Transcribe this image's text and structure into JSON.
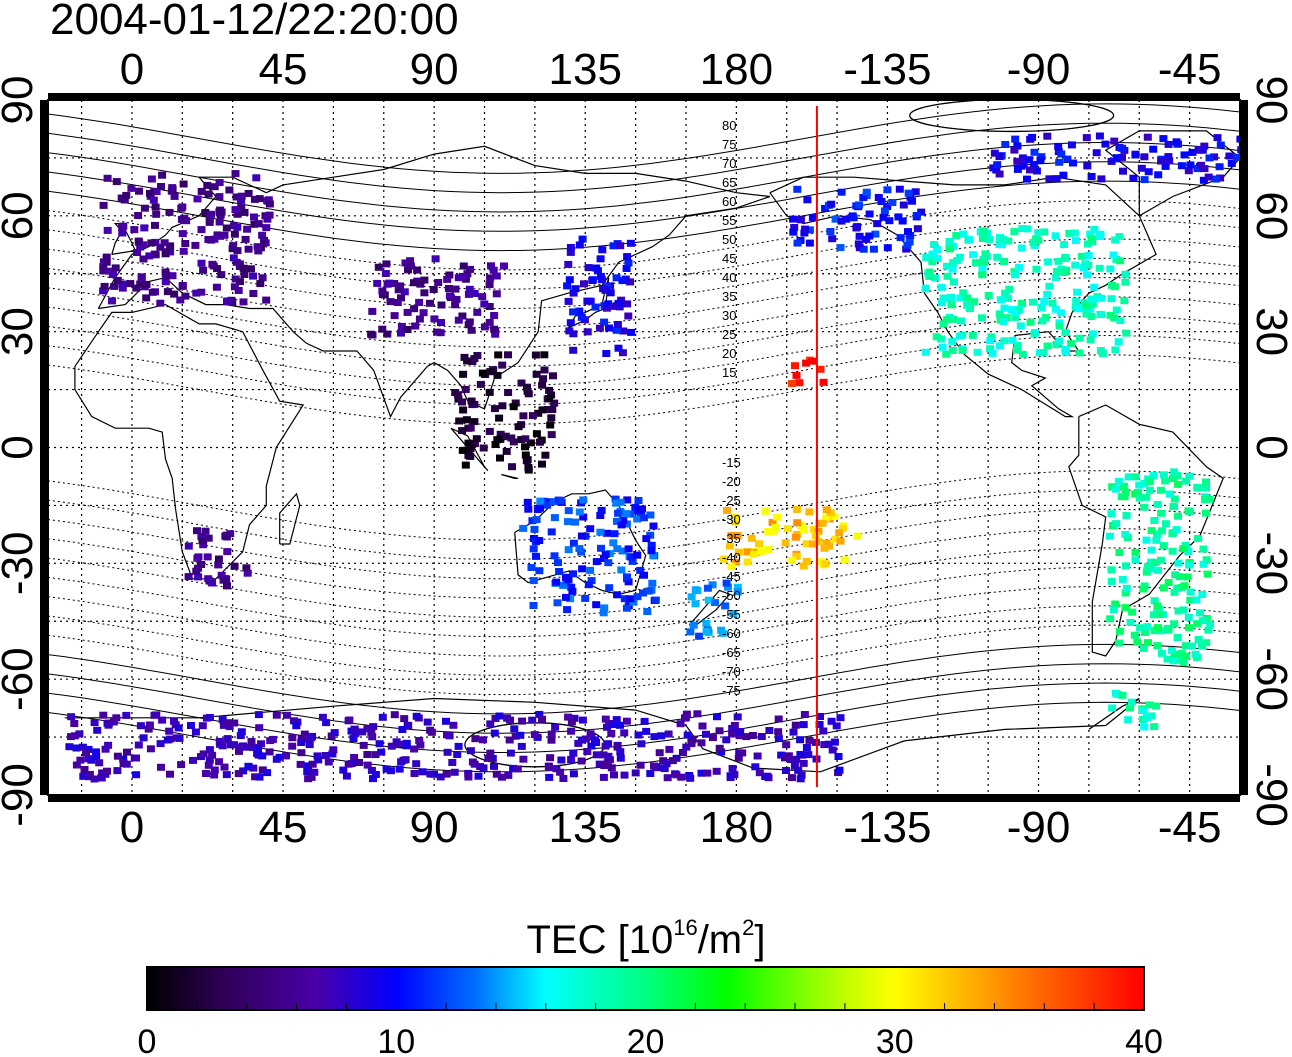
{
  "title": "2004-01-12/22:20:00",
  "map": {
    "lon_ticks": [
      {
        "lon": 0,
        "label": "0"
      },
      {
        "lon": 45,
        "label": "45"
      },
      {
        "lon": 90,
        "label": "90"
      },
      {
        "lon": 135,
        "label": "135"
      },
      {
        "lon": 180,
        "label": "180"
      },
      {
        "lon": 225,
        "label": "-135"
      },
      {
        "lon": 270,
        "label": "-90"
      },
      {
        "lon": 315,
        "label": "-45"
      }
    ],
    "lat_ticks": [
      {
        "lat": 90,
        "label": "90"
      },
      {
        "lat": 60,
        "label": "60"
      },
      {
        "lat": 30,
        "label": "30"
      },
      {
        "lat": 0,
        "label": "0"
      },
      {
        "lat": -30,
        "label": "-30"
      },
      {
        "lat": -60,
        "label": "-60"
      },
      {
        "lat": -90,
        "label": "-90"
      }
    ],
    "lon_range": [
      -25,
      330
    ],
    "lat_range": [
      -90,
      90
    ],
    "grid": "dotted 15-degree",
    "terminator_lon": 204,
    "magnetic_lat_labels_north": [
      "80",
      "75",
      "70",
      "65",
      "60",
      "55",
      "50",
      "45",
      "40",
      "35",
      "30",
      "25",
      "20",
      "15"
    ],
    "magnetic_lat_labels_south": [
      "-15",
      "-20",
      "-25",
      "-30",
      "-35",
      "-40",
      "-45",
      "-50",
      "-55",
      "-60",
      "-65",
      "-70",
      "-75"
    ]
  },
  "colorbar": {
    "label_main": "TEC  [10",
    "label_exp1": "16",
    "label_mid": "/m",
    "label_exp2": "2",
    "label_end": "]",
    "ticks": [
      "0",
      "10",
      "20",
      "30",
      "40"
    ],
    "range": [
      0,
      40
    ]
  },
  "colors": {
    "terminator": "#ff0000",
    "scale": [
      "#000000",
      "#30005a",
      "#4a00a8",
      "#0000ff",
      "#00a0ff",
      "#00ffff",
      "#00ff80",
      "#00ff00",
      "#c0ff00",
      "#ffff00",
      "#ff8000",
      "#ff0000"
    ]
  },
  "tec_regions": [
    {
      "region": "Europe",
      "lon": [
        -10,
        40
      ],
      "lat": [
        38,
        72
      ],
      "tec": 6
    },
    {
      "region": "Asia",
      "lon": [
        70,
        110
      ],
      "lat": [
        30,
        50
      ],
      "tec": 6
    },
    {
      "region": "Japan",
      "lon": [
        128,
        148
      ],
      "lat": [
        25,
        55
      ],
      "tec": 10
    },
    {
      "region": "North America",
      "lon": [
        235,
        295
      ],
      "lat": [
        25,
        58
      ],
      "tec": 20
    },
    {
      "region": "Alaska",
      "lon": [
        195,
        235
      ],
      "lat": [
        52,
        68
      ],
      "tec": 11
    },
    {
      "region": "Hawaii",
      "lon": [
        195,
        205
      ],
      "lat": [
        16,
        24
      ],
      "tec": 40
    },
    {
      "region": "South Pacific",
      "lon": [
        175,
        215
      ],
      "lat": [
        -30,
        -15
      ],
      "tec": 34
    },
    {
      "region": "New Zealand",
      "lon": [
        165,
        180
      ],
      "lat": [
        -48,
        -34
      ],
      "tec": 14
    },
    {
      "region": "Australia",
      "lon": [
        115,
        155
      ],
      "lat": [
        -42,
        -12
      ],
      "tec": 12
    },
    {
      "region": "South America",
      "lon": [
        290,
        320
      ],
      "lat": [
        -55,
        -5
      ],
      "tec": 21
    },
    {
      "region": "Southern Africa",
      "lon": [
        15,
        35
      ],
      "lat": [
        -35,
        -20
      ],
      "tec": 6
    },
    {
      "region": "South-east Asia",
      "lon": [
        95,
        125
      ],
      "lat": [
        -5,
        25
      ],
      "tec": 2
    },
    {
      "region": "Antarctic Peninsula",
      "lon": [
        290,
        305
      ],
      "lat": [
        -72,
        -62
      ],
      "tec": 20
    },
    {
      "region": "Antarctica",
      "lon": [
        -20,
        210
      ],
      "lat": [
        -85,
        -68
      ],
      "tec": 8
    },
    {
      "region": "Arctic",
      "lon": [
        255,
        330
      ],
      "lat": [
        70,
        82
      ],
      "tec": 10
    }
  ]
}
